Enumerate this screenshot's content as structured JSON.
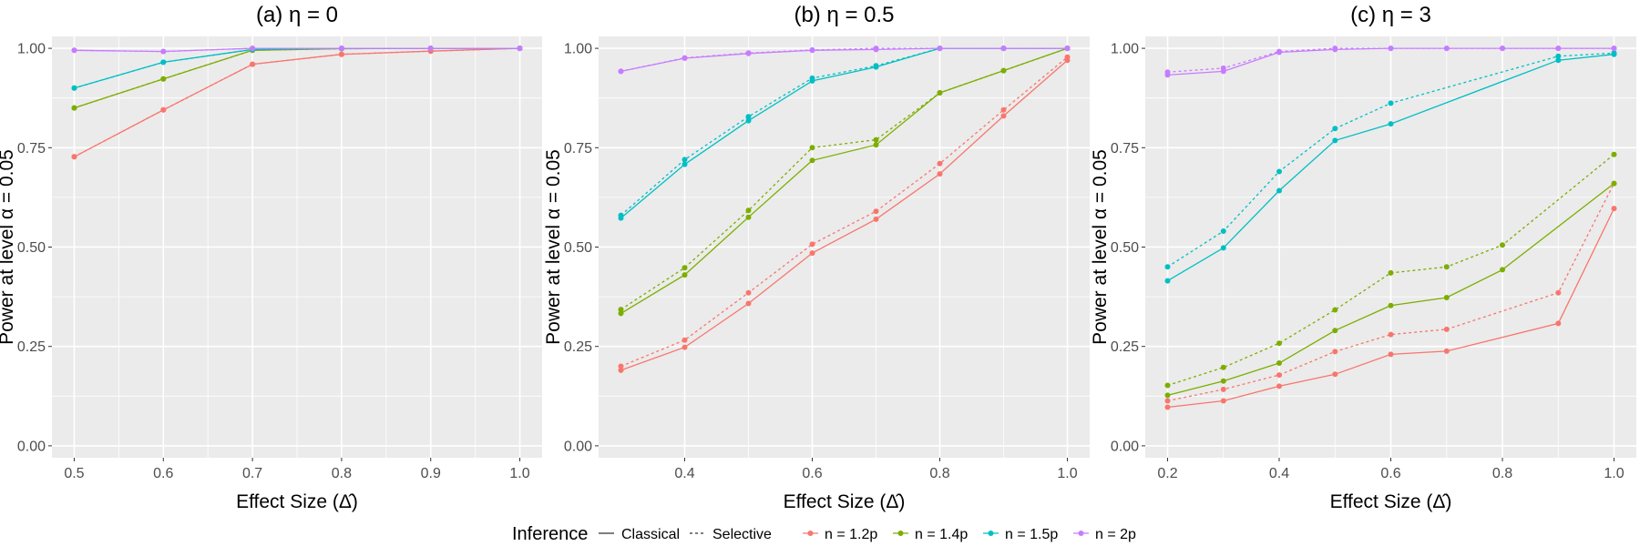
{
  "chart_data": [
    {
      "type": "line",
      "title": "(a) η = 0",
      "xlabel": "Effect Size (Δ̂)",
      "ylabel": "Power at level α = 0.05",
      "xlim": [
        0.475,
        1.025
      ],
      "ylim": [
        -0.03,
        1.03
      ],
      "xticks": [
        "0.5",
        "0.6",
        "0.7",
        "0.8",
        "0.9",
        "1.0"
      ],
      "yticks": [
        "0.00",
        "0.25",
        "0.50",
        "0.75",
        "1.00"
      ],
      "x": [
        0.5,
        0.6,
        0.7,
        0.8,
        0.9,
        1.0
      ],
      "grid": true,
      "series": [
        {
          "name": "n = 1.2p",
          "inference": "Classical",
          "values": [
            0.727,
            0.845,
            0.96,
            0.985,
            0.993,
            1.0
          ]
        },
        {
          "name": "n = 1.2p",
          "inference": "Selective",
          "values": [
            0.727,
            0.845,
            0.96,
            0.985,
            0.993,
            1.0
          ]
        },
        {
          "name": "n = 1.4p",
          "inference": "Classical",
          "values": [
            0.85,
            0.923,
            0.995,
            0.999,
            1.0,
            1.0
          ]
        },
        {
          "name": "n = 1.4p",
          "inference": "Selective",
          "values": [
            0.85,
            0.923,
            0.995,
            0.999,
            1.0,
            1.0
          ]
        },
        {
          "name": "n = 1.5p",
          "inference": "Classical",
          "values": [
            0.9,
            0.965,
            0.997,
            1.0,
            1.0,
            1.0
          ]
        },
        {
          "name": "n = 1.5p",
          "inference": "Selective",
          "values": [
            0.9,
            0.965,
            0.997,
            1.0,
            1.0,
            1.0
          ]
        },
        {
          "name": "n = 2p",
          "inference": "Classical",
          "values": [
            0.995,
            0.992,
            1.0,
            1.0,
            1.0,
            1.0
          ]
        },
        {
          "name": "n = 2p",
          "inference": "Selective",
          "values": [
            0.995,
            0.992,
            1.0,
            1.0,
            1.0,
            1.0
          ]
        }
      ]
    },
    {
      "type": "line",
      "title": "(b) η = 0.5",
      "xlabel": "Effect Size (Δ̂)",
      "ylabel": "Power at level α = 0.05",
      "xlim": [
        0.265,
        1.035
      ],
      "ylim": [
        -0.03,
        1.03
      ],
      "xticks": [
        "0.4",
        "0.6",
        "0.8",
        "1.0"
      ],
      "yticks": [
        "0.00",
        "0.25",
        "0.50",
        "0.75",
        "1.00"
      ],
      "x": [
        0.3,
        0.4,
        0.5,
        0.6,
        0.7,
        0.8,
        0.9,
        1.0
      ],
      "grid": true,
      "series": [
        {
          "name": "n = 1.2p",
          "inference": "Classical",
          "values": [
            0.19,
            0.248,
            0.358,
            0.485,
            0.57,
            0.684,
            0.83,
            0.97
          ]
        },
        {
          "name": "n = 1.2p",
          "inference": "Selective",
          "values": [
            0.2,
            0.266,
            0.385,
            0.507,
            0.59,
            0.71,
            0.845,
            0.978
          ]
        },
        {
          "name": "n = 1.4p",
          "inference": "Classical",
          "values": [
            0.333,
            0.43,
            0.575,
            0.718,
            0.757,
            0.888,
            0.944,
            1.0
          ]
        },
        {
          "name": "n = 1.4p",
          "inference": "Selective",
          "values": [
            0.343,
            0.448,
            0.592,
            0.75,
            0.77,
            0.888,
            0.944,
            1.0
          ]
        },
        {
          "name": "n = 1.5p",
          "inference": "Classical",
          "values": [
            0.573,
            0.708,
            0.818,
            0.918,
            0.953,
            1.0,
            1.0,
            1.0
          ]
        },
        {
          "name": "n = 1.5p",
          "inference": "Selective",
          "values": [
            0.58,
            0.72,
            0.828,
            0.925,
            0.956,
            1.0,
            1.0,
            1.0
          ]
        },
        {
          "name": "n = 2p",
          "inference": "Classical",
          "values": [
            0.942,
            0.975,
            0.987,
            0.995,
            0.997,
            1.0,
            1.0,
            1.0
          ]
        },
        {
          "name": "n = 2p",
          "inference": "Selective",
          "values": [
            0.942,
            0.976,
            0.988,
            0.996,
            1.0,
            1.0,
            1.0,
            1.0
          ]
        }
      ]
    },
    {
      "type": "line",
      "title": "(c) η = 3",
      "xlabel": "Effect Size (Δ̂)",
      "ylabel": "Power at level α = 0.05",
      "xlim": [
        0.16,
        1.04
      ],
      "ylim": [
        -0.03,
        1.03
      ],
      "xticks": [
        "0.2",
        "0.4",
        "0.6",
        "0.8",
        "1.0"
      ],
      "yticks": [
        "0.00",
        "0.25",
        "0.50",
        "0.75",
        "1.00"
      ],
      "x": [
        0.2,
        0.3,
        0.4,
        0.5,
        0.6,
        0.7,
        0.8,
        0.9,
        1.0
      ],
      "grid": true,
      "series": [
        {
          "name": "n = 1.2p",
          "inference": "Classical",
          "values": [
            0.097,
            0.113,
            0.15,
            0.18,
            0.23,
            0.238,
            null,
            0.308,
            0.597
          ]
        },
        {
          "name": "n = 1.2p",
          "inference": "Selective",
          "values": [
            0.113,
            0.142,
            0.178,
            0.237,
            0.28,
            0.293,
            null,
            0.385,
            0.66
          ]
        },
        {
          "name": "n = 1.4p",
          "inference": "Classical",
          "values": [
            0.127,
            0.163,
            0.208,
            0.29,
            0.353,
            0.373,
            0.443,
            null,
            0.66
          ]
        },
        {
          "name": "n = 1.4p",
          "inference": "Selective",
          "values": [
            0.152,
            0.197,
            0.258,
            0.342,
            0.435,
            0.45,
            0.505,
            null,
            0.733
          ]
        },
        {
          "name": "n = 1.5p",
          "inference": "Classical",
          "values": [
            0.415,
            0.498,
            0.642,
            0.768,
            0.81,
            null,
            null,
            0.97,
            0.985
          ]
        },
        {
          "name": "n = 1.5p",
          "inference": "Selective",
          "values": [
            0.45,
            0.54,
            0.69,
            0.798,
            0.862,
            null,
            null,
            0.98,
            0.988
          ]
        },
        {
          "name": "n = 2p",
          "inference": "Classical",
          "values": [
            0.933,
            0.942,
            0.99,
            0.997,
            1.0,
            1.0,
            1.0,
            1.0,
            1.0
          ]
        },
        {
          "name": "n = 2p",
          "inference": "Selective",
          "values": [
            0.94,
            0.95,
            0.992,
            1.0,
            1.0,
            1.0,
            1.0,
            1.0,
            1.0
          ]
        }
      ]
    }
  ],
  "legend": {
    "placement": "bottom",
    "inference_title": "Inference",
    "inference_items": [
      {
        "label": "Classical",
        "linestyle": "solid"
      },
      {
        "label": "Selective",
        "linestyle": "dotted"
      }
    ],
    "n_items": [
      {
        "label": "n = 1.2p",
        "color": "#F8766D"
      },
      {
        "label": "n = 1.4p",
        "color": "#7CAE00"
      },
      {
        "label": "n = 1.5p",
        "color": "#00BFC4"
      },
      {
        "label": "n = 2p",
        "color": "#C77CFF"
      }
    ]
  },
  "colors": {
    "panel_background": "#EBEBEB",
    "grid": "#FFFFFF"
  }
}
